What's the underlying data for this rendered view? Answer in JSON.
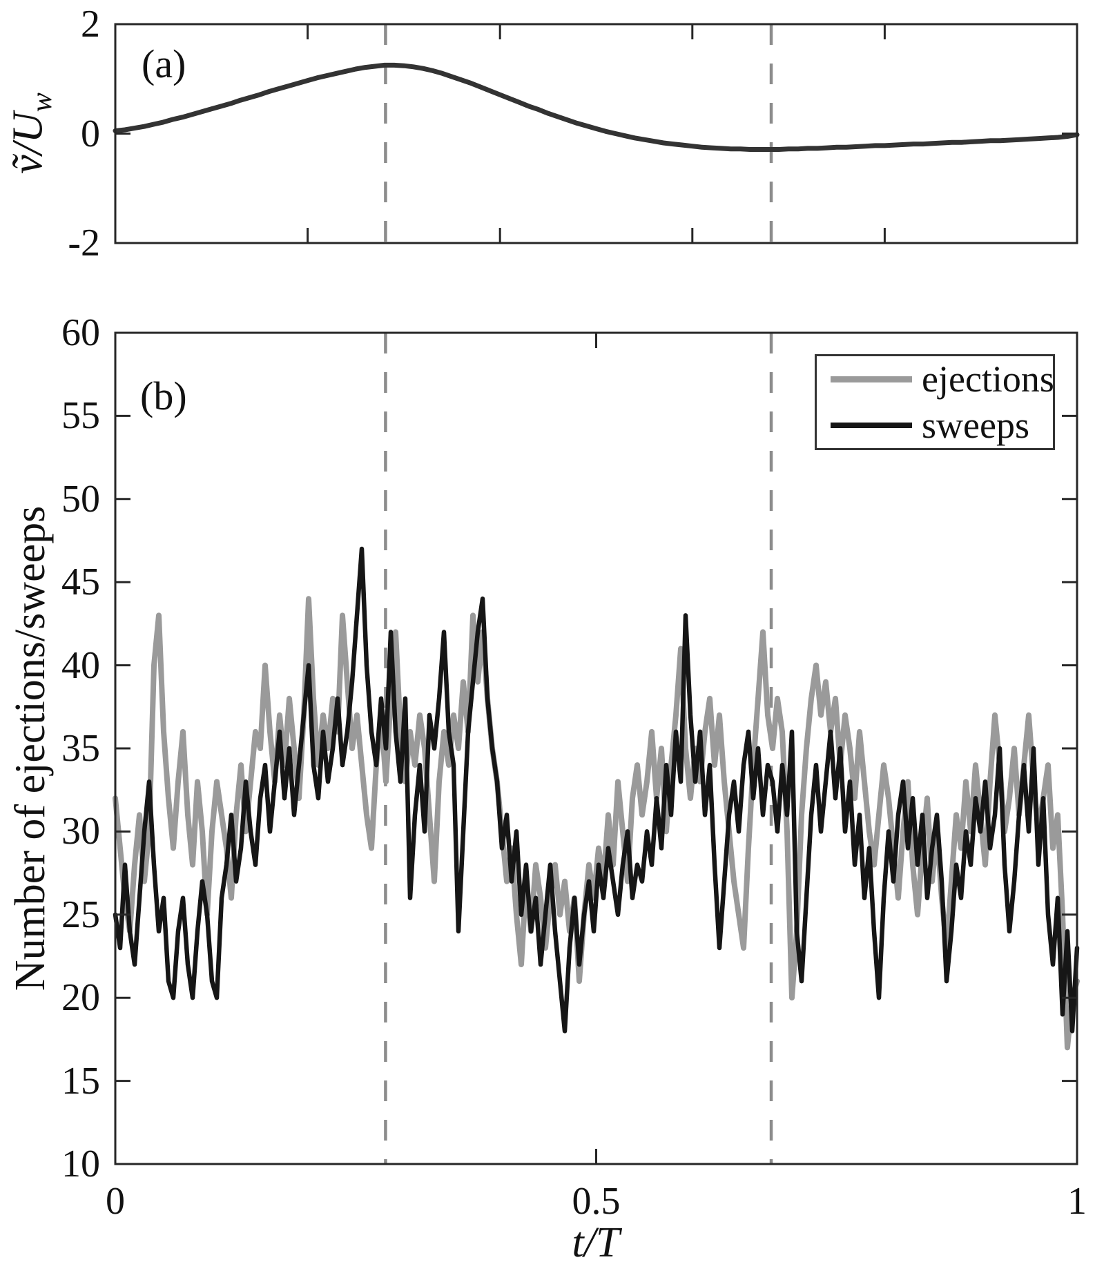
{
  "figure": {
    "panel_a": {
      "label": "(a)",
      "ylabel_main": "ṽ/U",
      "ylabel_sub": "w"
    },
    "panel_b": {
      "label": "(b)",
      "ylabel": "Number of ejections/sweeps",
      "xlabel": "t/T"
    },
    "colors": {
      "ejections": "#9a9a9a",
      "sweeps": "#161616",
      "wave": "#333333",
      "dashed": "#8c8c8c",
      "axis": "#262626",
      "text": "#111111",
      "background": "#ffffff"
    }
  },
  "chart_data": [
    {
      "type": "line",
      "panel": "a",
      "xlabel": "",
      "ylabel": "ṽ/U_w",
      "xlim": [
        0,
        1
      ],
      "ylim": [
        -2,
        2
      ],
      "xticks": [
        0.2,
        0.4,
        0.6,
        0.8
      ],
      "xtick_labels": [],
      "yticks": [
        2,
        0,
        -2
      ],
      "ytick_labels": [
        "2",
        "0",
        "-2"
      ],
      "vlines": [
        0.281,
        0.682
      ],
      "grid": false,
      "series": [
        {
          "name": "phase-averaged-wave-velocity",
          "color_key": "wave",
          "x_start": 0,
          "x_end": 1,
          "values": [
            0.05,
            0.07,
            0.1,
            0.13,
            0.17,
            0.21,
            0.26,
            0.3,
            0.35,
            0.4,
            0.45,
            0.5,
            0.55,
            0.61,
            0.66,
            0.71,
            0.77,
            0.82,
            0.87,
            0.92,
            0.97,
            1.02,
            1.06,
            1.1,
            1.14,
            1.18,
            1.21,
            1.23,
            1.25,
            1.25,
            1.24,
            1.22,
            1.19,
            1.15,
            1.1,
            1.04,
            0.98,
            0.92,
            0.85,
            0.78,
            0.71,
            0.64,
            0.57,
            0.5,
            0.44,
            0.37,
            0.31,
            0.25,
            0.19,
            0.14,
            0.09,
            0.04,
            0.0,
            -0.04,
            -0.08,
            -0.11,
            -0.14,
            -0.17,
            -0.19,
            -0.21,
            -0.23,
            -0.25,
            -0.26,
            -0.27,
            -0.28,
            -0.28,
            -0.29,
            -0.29,
            -0.29,
            -0.29,
            -0.28,
            -0.28,
            -0.27,
            -0.27,
            -0.26,
            -0.25,
            -0.25,
            -0.24,
            -0.23,
            -0.22,
            -0.22,
            -0.21,
            -0.2,
            -0.19,
            -0.19,
            -0.18,
            -0.17,
            -0.16,
            -0.16,
            -0.15,
            -0.14,
            -0.13,
            -0.13,
            -0.12,
            -0.11,
            -0.1,
            -0.09,
            -0.08,
            -0.07,
            -0.05,
            -0.02
          ]
        }
      ]
    },
    {
      "type": "line",
      "panel": "b",
      "xlabel": "t/T",
      "ylabel": "Number of ejections/sweeps",
      "xlim": [
        0,
        1
      ],
      "ylim": [
        10,
        60
      ],
      "xticks": [
        0,
        0.5,
        1
      ],
      "xtick_labels": [
        "0",
        "0.5",
        "1"
      ],
      "yticks": [
        10,
        15,
        20,
        25,
        30,
        35,
        40,
        45,
        50,
        55,
        60
      ],
      "ytick_labels": [
        "10",
        "15",
        "20",
        "25",
        "30",
        "35",
        "40",
        "45",
        "50",
        "55",
        "60"
      ],
      "vlines": [
        0.281,
        0.682
      ],
      "grid": false,
      "legend": {
        "position": "northeast",
        "entries": [
          "ejections",
          "sweeps"
        ]
      },
      "series": [
        {
          "name": "ejections",
          "color_key": "ejections",
          "x_start": 0,
          "x_end": 1,
          "values": [
            32,
            29,
            26,
            24,
            28,
            31,
            27,
            30,
            40,
            43,
            36,
            32,
            29,
            33,
            36,
            31,
            28,
            33,
            30,
            25,
            30,
            33,
            31,
            29,
            26,
            31,
            34,
            30,
            33,
            36,
            35,
            40,
            36,
            33,
            37,
            34,
            38,
            35,
            32,
            37,
            44,
            38,
            34,
            37,
            35,
            38,
            36,
            43,
            39,
            35,
            37,
            34,
            31,
            29,
            34,
            37,
            33,
            38,
            42,
            36,
            33,
            36,
            34,
            37,
            35,
            31,
            27,
            33,
            36,
            34,
            37,
            35,
            39,
            36,
            43,
            39,
            42,
            38,
            35,
            33,
            30,
            27,
            29,
            25,
            22,
            27,
            24,
            28,
            26,
            23,
            26,
            28,
            25,
            27,
            24,
            26,
            21,
            25,
            28,
            26,
            29,
            27,
            31,
            28,
            33,
            30,
            27,
            32,
            34,
            31,
            33,
            36,
            32,
            35,
            30,
            34,
            37,
            41,
            35,
            32,
            35,
            33,
            36,
            38,
            34,
            37,
            33,
            30,
            27,
            25,
            23,
            29,
            34,
            38,
            42,
            37,
            35,
            38,
            36,
            30,
            20,
            24,
            31,
            35,
            38,
            40,
            37,
            39,
            36,
            38,
            34,
            37,
            35,
            32,
            36,
            33,
            30,
            28,
            31,
            34,
            32,
            29,
            26,
            30,
            33,
            28,
            25,
            29,
            32,
            27,
            30,
            26,
            23,
            27,
            31,
            29,
            33,
            30,
            34,
            31,
            28,
            33,
            37,
            34,
            30,
            32,
            35,
            31,
            34,
            37,
            33,
            30,
            32,
            34,
            29,
            31,
            25,
            17,
            20,
            21
          ]
        },
        {
          "name": "sweeps",
          "color_key": "sweeps",
          "x_start": 0,
          "x_end": 1,
          "values": [
            25,
            23,
            28,
            24,
            22,
            26,
            30,
            33,
            28,
            24,
            26,
            21,
            20,
            24,
            26,
            22,
            20,
            24,
            27,
            25,
            21,
            20,
            26,
            28,
            31,
            27,
            29,
            33,
            30,
            28,
            32,
            34,
            30,
            33,
            36,
            32,
            35,
            31,
            34,
            37,
            40,
            34,
            32,
            36,
            33,
            35,
            38,
            34,
            36,
            39,
            43,
            47,
            40,
            36,
            34,
            38,
            35,
            42,
            36,
            33,
            38,
            26,
            31,
            34,
            30,
            37,
            35,
            38,
            42,
            36,
            34,
            24,
            30,
            36,
            39,
            42,
            44,
            38,
            35,
            33,
            29,
            31,
            27,
            30,
            25,
            28,
            24,
            26,
            22,
            25,
            28,
            24,
            21,
            18,
            23,
            26,
            22,
            25,
            27,
            24,
            28,
            26,
            29,
            27,
            25,
            28,
            30,
            26,
            28,
            27,
            30,
            28,
            32,
            29,
            34,
            31,
            36,
            33,
            43,
            37,
            33,
            36,
            31,
            34,
            28,
            23,
            27,
            31,
            33,
            30,
            34,
            36,
            32,
            35,
            31,
            34,
            33,
            30,
            34,
            31,
            36,
            24,
            21,
            26,
            31,
            34,
            30,
            33,
            36,
            32,
            35,
            30,
            33,
            28,
            31,
            26,
            29,
            24,
            20,
            26,
            30,
            27,
            31,
            33,
            29,
            32,
            28,
            31,
            26,
            29,
            31,
            27,
            21,
            24,
            28,
            26,
            30,
            28,
            32,
            30,
            33,
            29,
            31,
            35,
            28,
            24,
            27,
            31,
            34,
            30,
            35,
            28,
            32,
            25,
            22,
            26,
            19,
            24,
            18,
            23
          ]
        }
      ]
    }
  ]
}
